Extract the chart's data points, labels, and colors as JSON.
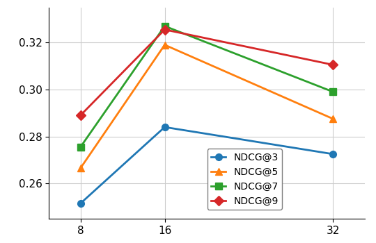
{
  "x": [
    8,
    16,
    32
  ],
  "series": {
    "NDCG@3": [
      0.2515,
      0.284,
      0.2725
    ],
    "NDCG@5": [
      0.2665,
      0.319,
      0.2875
    ],
    "NDCG@7": [
      0.2755,
      0.327,
      0.299
    ],
    "NDCG@9": [
      0.289,
      0.3255,
      0.3105
    ]
  },
  "colors": {
    "NDCG@3": "#1f77b4",
    "NDCG@5": "#ff7f0e",
    "NDCG@7": "#2ca02c",
    "NDCG@9": "#d62728"
  },
  "markers": {
    "NDCG@3": "o",
    "NDCG@5": "^",
    "NDCG@7": "s",
    "NDCG@9": "D"
  },
  "ylim": [
    0.245,
    0.335
  ],
  "yticks": [
    0.26,
    0.28,
    0.3,
    0.32
  ],
  "xticks": [
    8,
    16,
    32
  ],
  "grid": true,
  "linewidth": 2.0,
  "markersize": 7,
  "legend_fontsize": 10,
  "tick_fontsize": 11
}
